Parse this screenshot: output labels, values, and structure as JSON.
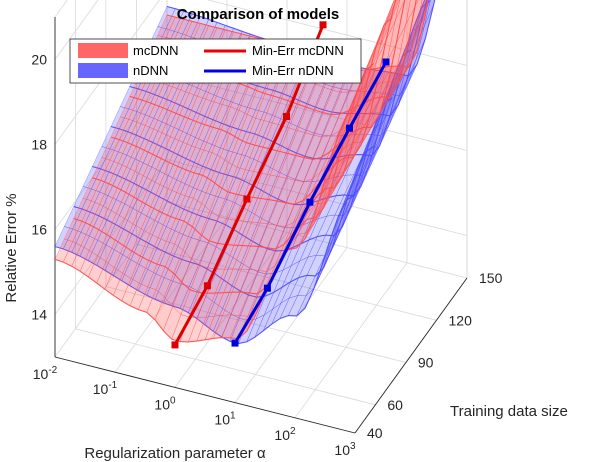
{
  "chart_data": {
    "type": "surface",
    "title": "Comparison of models",
    "xlabel": "Regularization parameter α",
    "ylabel": "Training data size",
    "zlabel": "Relative Error %",
    "x_scale": "log",
    "x_ticks": [
      "-2",
      "-1",
      "0",
      "1",
      "2",
      "3"
    ],
    "x_tick_base": "10",
    "y_ticks": [
      "40",
      "60",
      "90",
      "120",
      "150"
    ],
    "z_ticks": [
      "14",
      "16",
      "18",
      "20"
    ],
    "xlim": [
      0.01,
      1000
    ],
    "ylim": [
      40,
      150
    ],
    "zlim": [
      13,
      21
    ],
    "grid": true,
    "legend_position": "top-left",
    "legend": [
      {
        "label": "mcDNN",
        "style": "patch",
        "color": "#ff6666"
      },
      {
        "label": "nDNN",
        "style": "patch",
        "color": "#6666ff"
      },
      {
        "label": "Min-Err mcDNN",
        "style": "line",
        "color": "#ee0000"
      },
      {
        "label": "Min-Err nDNN",
        "style": "line",
        "color": "#0000ee"
      }
    ],
    "series": [
      {
        "name": "mcDNN",
        "kind": "surface",
        "color": "#ff4d4d",
        "baseline_min_by_size": [
          {
            "size": 40,
            "log_alpha": -2,
            "err": 15.3
          },
          {
            "size": 40,
            "log_alpha": -0.5,
            "err": 14.6
          },
          {
            "size": 40,
            "log_alpha": 0,
            "err": 14.1
          },
          {
            "size": 40,
            "log_alpha": 1,
            "err": 14.5
          },
          {
            "size": 40,
            "log_alpha": 2,
            "err": 17.0
          },
          {
            "size": 40,
            "log_alpha": 3,
            "err": 20.6
          },
          {
            "size": 150,
            "log_alpha": -2,
            "err": 17.4
          },
          {
            "size": 150,
            "log_alpha": 0,
            "err": 17.4
          },
          {
            "size": 150,
            "log_alpha": 1,
            "err": 17.2
          },
          {
            "size": 150,
            "log_alpha": 2,
            "err": 17.6
          },
          {
            "size": 150,
            "log_alpha": 3,
            "err": 23.5
          }
        ]
      },
      {
        "name": "nDNN",
        "kind": "surface",
        "color": "#4d4dff",
        "baseline_min_by_size": [
          {
            "size": 40,
            "log_alpha": -2,
            "err": 15.6
          },
          {
            "size": 40,
            "log_alpha": 0,
            "err": 14.9
          },
          {
            "size": 40,
            "log_alpha": 1,
            "err": 14.4
          },
          {
            "size": 40,
            "log_alpha": 2,
            "err": 15.4
          },
          {
            "size": 40,
            "log_alpha": 3,
            "err": 18.6
          },
          {
            "size": 150,
            "log_alpha": -2,
            "err": 17.6
          },
          {
            "size": 150,
            "log_alpha": 0,
            "err": 17.4
          },
          {
            "size": 150,
            "log_alpha": 1,
            "err": 17.3
          },
          {
            "size": 150,
            "log_alpha": 2,
            "err": 17.4
          },
          {
            "size": 150,
            "log_alpha": 3,
            "err": 21.8
          }
        ]
      },
      {
        "name": "Min-Err mcDNN",
        "kind": "line3d",
        "color": "#dd0000",
        "points": [
          {
            "log_alpha": 0.0,
            "size": 40,
            "err": 14.0
          },
          {
            "log_alpha": 0.2,
            "size": 60,
            "err": 14.8
          },
          {
            "log_alpha": 0.35,
            "size": 90,
            "err": 15.9
          },
          {
            "log_alpha": 0.5,
            "size": 120,
            "err": 16.9
          },
          {
            "log_alpha": 0.6,
            "size": 150,
            "err": 18.1
          }
        ]
      },
      {
        "name": "Min-Err nDNN",
        "kind": "line3d",
        "color": "#0000dd",
        "points": [
          {
            "log_alpha": 1.0,
            "size": 40,
            "err": 14.4
          },
          {
            "log_alpha": 1.2,
            "size": 60,
            "err": 15.1
          },
          {
            "log_alpha": 1.4,
            "size": 90,
            "err": 16.2
          },
          {
            "log_alpha": 1.55,
            "size": 120,
            "err": 17.0
          },
          {
            "log_alpha": 1.65,
            "size": 150,
            "err": 17.6
          }
        ]
      }
    ]
  }
}
